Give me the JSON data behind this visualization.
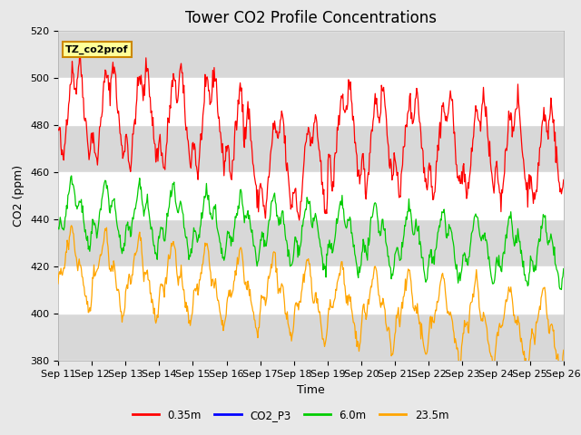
{
  "title": "Tower CO2 Profile Concentrations",
  "xlabel": "Time",
  "ylabel": "CO2 (ppm)",
  "ylim": [
    380,
    520
  ],
  "yticks": [
    380,
    400,
    420,
    440,
    460,
    480,
    500,
    520
  ],
  "x_labels": [
    "Sep 11",
    "Sep 12",
    "Sep 13",
    "Sep 14",
    "Sep 15",
    "Sep 16",
    "Sep 17",
    "Sep 18",
    "Sep 19",
    "Sep 20",
    "Sep 21",
    "Sep 22",
    "Sep 23",
    "Sep 24",
    "Sep 25",
    "Sep 26"
  ],
  "n_days": 15,
  "colors": {
    "0.35m": "#ff0000",
    "CO2_P3": "#0000ff",
    "6.0m": "#00cc00",
    "23.5m": "#ffa500"
  },
  "legend_label_0": "0.35m",
  "legend_label_1": "CO2_P3",
  "legend_label_2": "6.0m",
  "legend_label_3": "23.5m",
  "annotation_text": "TZ_co2prof",
  "annotation_bg": "#ffff99",
  "annotation_border": "#cc8800",
  "fig_bg": "#e8e8e8",
  "plot_bg": "#ffffff",
  "band_color": "#d8d8d8",
  "title_fontsize": 12,
  "label_fontsize": 9,
  "tick_fontsize": 8
}
